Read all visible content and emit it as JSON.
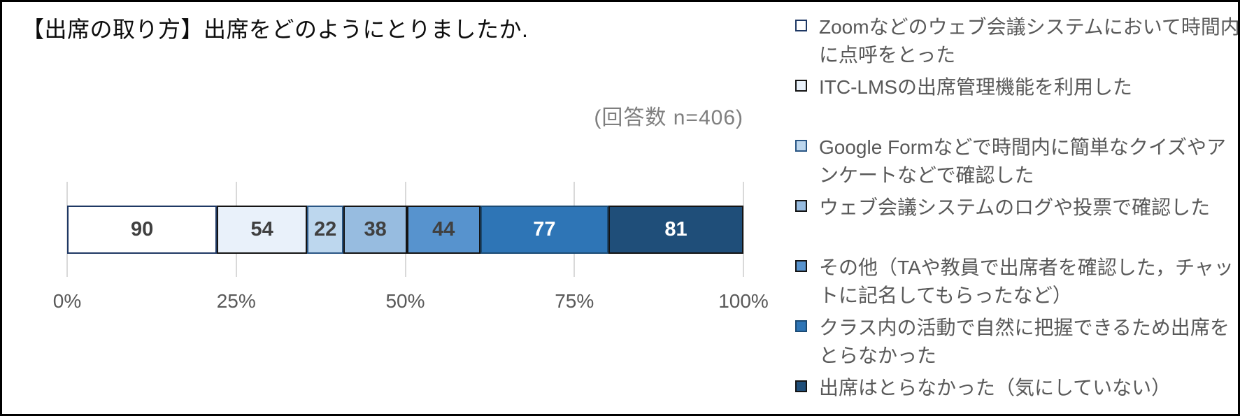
{
  "chart_data": {
    "type": "bar",
    "orientation": "horizontal-stacked",
    "title": "【出席の取り方】出席をどのようにとりましたか.",
    "annotation": "(回答数 n=406)",
    "total": 406,
    "x_ticks": [
      "0%",
      "25%",
      "50%",
      "75%",
      "100%"
    ],
    "xlim": [
      0,
      100
    ],
    "grid": true,
    "legend_position": "right",
    "gridline_color": "#D9D9D9",
    "axis_label_color": "#595959",
    "series": [
      {
        "name": "Zoomなどのウェブ会議システムにおいて時間内に点呼をとった",
        "value": 90,
        "fill": "#FFFFFF",
        "border": "#1F3864",
        "value_color": "#404040"
      },
      {
        "name": "ITC-LMSの出席管理機能を利用した",
        "value": 54,
        "fill": "#E9F1FA",
        "border": "#141414",
        "value_color": "#404040"
      },
      {
        "name": "Google Formなどで時間内に簡単なクイズやアンケートなどで確認した",
        "value": 22,
        "fill": "#BDD7EE",
        "border": "#2A5684",
        "value_color": "#404040"
      },
      {
        "name": "ウェブ会議システムのログや投票で確認した",
        "value": 38,
        "fill": "#97BCE0",
        "border": "#141414",
        "value_color": "#404040"
      },
      {
        "name": "その他（TAや教員で出席者を確認した，チャットに記名してもらったなど）",
        "value": 44,
        "fill": "#5793CE",
        "border": "#141414",
        "value_color": "#404040"
      },
      {
        "name": "クラス内の活動で自然に把握できるため出席をとらなかった",
        "value": 77,
        "fill": "#2E75B6",
        "border": "#1C4B74",
        "value_color": "#FFFFFF"
      },
      {
        "name": "出席はとらなかった（気にしていない）",
        "value": 81,
        "fill": "#1F4E79",
        "border": "#141414",
        "value_color": "#FFFFFF"
      }
    ]
  }
}
